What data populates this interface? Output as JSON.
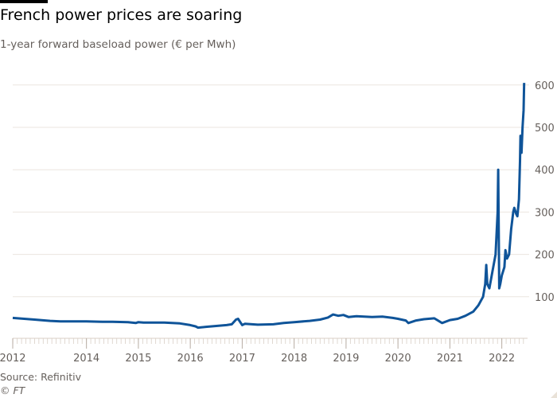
{
  "chart_data": {
    "type": "line",
    "title": "French power prices are soaring",
    "subtitle": "1-year forward baseload power (€ per Mwh)",
    "source": "Source: Refinitiv",
    "copyright": "© FT",
    "xlim": [
      2012.58,
      2022.45
    ],
    "ylim": [
      0,
      620
    ],
    "x_ticks": [
      {
        "value": 2012.58,
        "label": "2012"
      },
      {
        "value": 2014,
        "label": "2014"
      },
      {
        "value": 2015,
        "label": "2015"
      },
      {
        "value": 2016,
        "label": "2016"
      },
      {
        "value": 2017,
        "label": "2017"
      },
      {
        "value": 2018,
        "label": "2018"
      },
      {
        "value": 2019,
        "label": "2019"
      },
      {
        "value": 2020,
        "label": "2020"
      },
      {
        "value": 2021,
        "label": "2021"
      },
      {
        "value": 2022,
        "label": "2022"
      }
    ],
    "y_ticks": [
      100,
      200,
      300,
      400,
      500,
      600
    ],
    "y_axis_position": "right",
    "grid": true,
    "line_color": "#0f5499",
    "grid_color": "#ebe5df",
    "series": [
      {
        "x": [
          2012.58,
          2012.8,
          2013.0,
          2013.3,
          2013.5,
          2013.8,
          2014.0,
          2014.3,
          2014.5,
          2014.8,
          2014.95,
          2015.0,
          2015.1,
          2015.5,
          2015.8,
          2016.0,
          2016.1,
          2016.15,
          2016.3,
          2016.5,
          2016.7,
          2016.8,
          2016.88,
          2016.92,
          2017.0,
          2017.05,
          2017.3,
          2017.6,
          2017.8,
          2018.0,
          2018.3,
          2018.5,
          2018.65,
          2018.75,
          2018.85,
          2018.95,
          2019.05,
          2019.2,
          2019.5,
          2019.7,
          2019.9,
          2020.0,
          2020.15,
          2020.2,
          2020.35,
          2020.5,
          2020.7,
          2020.85,
          2021.0,
          2021.15,
          2021.3,
          2021.45,
          2021.55,
          2021.64,
          2021.68,
          2021.7,
          2021.72,
          2021.76,
          2021.82,
          2021.88,
          2021.92,
          2021.93,
          2021.95,
          2021.97,
          2022.0,
          2022.05,
          2022.07,
          2022.1,
          2022.14,
          2022.18,
          2022.22,
          2022.24,
          2022.28,
          2022.3,
          2022.33,
          2022.35,
          2022.36,
          2022.38,
          2022.4,
          2022.42,
          2022.43
        ],
        "y": [
          50,
          48,
          46,
          43,
          42,
          42,
          42,
          41,
          41,
          40,
          38,
          40,
          39,
          39,
          37,
          33,
          30,
          27,
          29,
          31,
          33,
          35,
          46,
          48,
          33,
          36,
          34,
          35,
          38,
          40,
          43,
          46,
          51,
          58,
          55,
          57,
          52,
          54,
          52,
          53,
          50,
          48,
          44,
          38,
          44,
          47,
          49,
          38,
          45,
          48,
          55,
          65,
          80,
          100,
          130,
          175,
          130,
          120,
          160,
          200,
          300,
          400,
          120,
          130,
          150,
          170,
          210,
          190,
          200,
          260,
          300,
          310,
          295,
          290,
          330,
          420,
          480,
          440,
          500,
          540,
          605
        ]
      }
    ]
  }
}
